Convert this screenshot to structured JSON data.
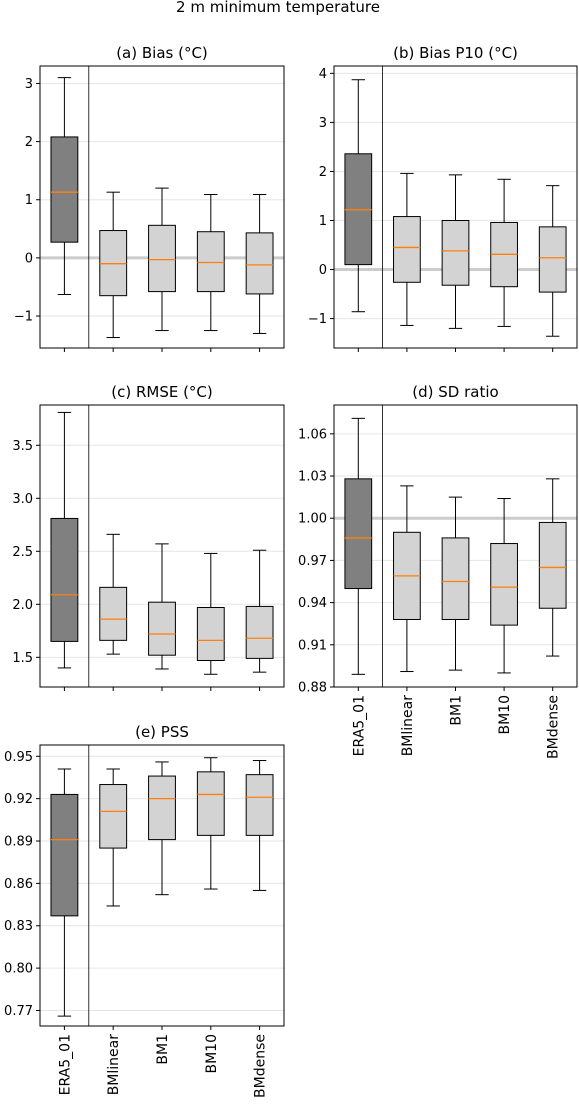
{
  "figure_title": "2 m  minimum temperature",
  "category_labels": [
    "ERA5_01",
    "BMlinear",
    "BM1",
    "BM10",
    "BMdense"
  ],
  "colors": {
    "era5_box": "#808080",
    "bm_box": "#d3d3d3",
    "median": "#ff7f0e",
    "reference_line": "#cccccc",
    "grid": "#e6e6e6"
  },
  "chart_data": [
    {
      "type": "box",
      "title": "(a) Bias (°C)",
      "categories": [
        "ERA5_01",
        "BMlinear",
        "BM1",
        "BM10",
        "BMdense"
      ],
      "ylim": [
        -1.55,
        3.3
      ],
      "yticks": [
        -1,
        0,
        1,
        2,
        3
      ],
      "ytick_labels": [
        "−1",
        "0",
        "1",
        "2",
        "3"
      ],
      "reference_line": 0,
      "show_xtick_labels": false,
      "boxes": [
        {
          "whislo": -0.63,
          "q1": 0.27,
          "med": 1.13,
          "q3": 2.08,
          "whishi": 3.1
        },
        {
          "whislo": -1.37,
          "q1": -0.65,
          "med": -0.1,
          "q3": 0.47,
          "whishi": 1.13
        },
        {
          "whislo": -1.25,
          "q1": -0.58,
          "med": -0.03,
          "q3": 0.56,
          "whishi": 1.2
        },
        {
          "whislo": -1.25,
          "q1": -0.58,
          "med": -0.08,
          "q3": 0.45,
          "whishi": 1.09
        },
        {
          "whislo": -1.3,
          "q1": -0.62,
          "med": -0.12,
          "q3": 0.43,
          "whishi": 1.09
        }
      ]
    },
    {
      "type": "box",
      "title": "(b) Bias P10 (°C)",
      "categories": [
        "ERA5_01",
        "BMlinear",
        "BM1",
        "BM10",
        "BMdense"
      ],
      "ylim": [
        -1.6,
        4.15
      ],
      "yticks": [
        -1,
        0,
        1,
        2,
        3,
        4
      ],
      "ytick_labels": [
        "−1",
        "0",
        "1",
        "2",
        "3",
        "4"
      ],
      "reference_line": 0,
      "show_xtick_labels": false,
      "boxes": [
        {
          "whislo": -0.86,
          "q1": 0.1,
          "med": 1.22,
          "q3": 2.36,
          "whishi": 3.87
        },
        {
          "whislo": -1.14,
          "q1": -0.26,
          "med": 0.45,
          "q3": 1.08,
          "whishi": 1.96
        },
        {
          "whislo": -1.2,
          "q1": -0.32,
          "med": 0.38,
          "q3": 1.0,
          "whishi": 1.93
        },
        {
          "whislo": -1.16,
          "q1": -0.35,
          "med": 0.31,
          "q3": 0.96,
          "whishi": 1.84
        },
        {
          "whislo": -1.36,
          "q1": -0.46,
          "med": 0.24,
          "q3": 0.87,
          "whishi": 1.71
        }
      ]
    },
    {
      "type": "box",
      "title": "(c) RMSE (°C)",
      "categories": [
        "ERA5_01",
        "BMlinear",
        "BM1",
        "BM10",
        "BMdense"
      ],
      "ylim": [
        1.22,
        3.88
      ],
      "yticks": [
        1.5,
        2.0,
        2.5,
        3.0,
        3.5
      ],
      "ytick_labels": [
        "1.5",
        "2.0",
        "2.5",
        "3.0",
        "3.5"
      ],
      "reference_line": null,
      "show_xtick_labels": false,
      "boxes": [
        {
          "whislo": 1.4,
          "q1": 1.65,
          "med": 2.09,
          "q3": 2.81,
          "whishi": 3.81
        },
        {
          "whislo": 1.53,
          "q1": 1.66,
          "med": 1.86,
          "q3": 2.16,
          "whishi": 2.66
        },
        {
          "whislo": 1.39,
          "q1": 1.52,
          "med": 1.72,
          "q3": 2.02,
          "whishi": 2.57
        },
        {
          "whislo": 1.34,
          "q1": 1.47,
          "med": 1.66,
          "q3": 1.97,
          "whishi": 2.48
        },
        {
          "whislo": 1.36,
          "q1": 1.49,
          "med": 1.68,
          "q3": 1.98,
          "whishi": 2.51
        }
      ]
    },
    {
      "type": "box",
      "title": "(d) SD ratio",
      "categories": [
        "ERA5_01",
        "BMlinear",
        "BM1",
        "BM10",
        "BMdense"
      ],
      "ylim": [
        0.88,
        1.0805
      ],
      "yticks": [
        0.88,
        0.91,
        0.94,
        0.97,
        1.0,
        1.03,
        1.06
      ],
      "ytick_labels": [
        "0.88",
        "0.91",
        "0.94",
        "0.97",
        "1.00",
        "1.03",
        "1.06"
      ],
      "reference_line": 1.0,
      "show_xtick_labels": true,
      "boxes": [
        {
          "whislo": 0.889,
          "q1": 0.95,
          "med": 0.986,
          "q3": 1.028,
          "whishi": 1.071
        },
        {
          "whislo": 0.891,
          "q1": 0.928,
          "med": 0.959,
          "q3": 0.99,
          "whishi": 1.023
        },
        {
          "whislo": 0.892,
          "q1": 0.928,
          "med": 0.955,
          "q3": 0.986,
          "whishi": 1.015
        },
        {
          "whislo": 0.89,
          "q1": 0.924,
          "med": 0.951,
          "q3": 0.982,
          "whishi": 1.014
        },
        {
          "whislo": 0.902,
          "q1": 0.936,
          "med": 0.965,
          "q3": 0.997,
          "whishi": 1.028
        }
      ]
    },
    {
      "type": "box",
      "title": "(e) PSS",
      "categories": [
        "ERA5_01",
        "BMlinear",
        "BM1",
        "BM10",
        "BMdense"
      ],
      "ylim": [
        0.759,
        0.958
      ],
      "yticks": [
        0.77,
        0.8,
        0.83,
        0.86,
        0.89,
        0.92,
        0.95
      ],
      "ytick_labels": [
        "0.77",
        "0.80",
        "0.83",
        "0.86",
        "0.89",
        "0.92",
        "0.95"
      ],
      "reference_line": null,
      "show_xtick_labels": true,
      "boxes": [
        {
          "whislo": 0.766,
          "q1": 0.837,
          "med": 0.891,
          "q3": 0.923,
          "whishi": 0.941
        },
        {
          "whislo": 0.844,
          "q1": 0.885,
          "med": 0.911,
          "q3": 0.93,
          "whishi": 0.941
        },
        {
          "whislo": 0.852,
          "q1": 0.891,
          "med": 0.92,
          "q3": 0.936,
          "whishi": 0.946
        },
        {
          "whislo": 0.856,
          "q1": 0.894,
          "med": 0.923,
          "q3": 0.939,
          "whishi": 0.949
        },
        {
          "whislo": 0.855,
          "q1": 0.894,
          "med": 0.921,
          "q3": 0.937,
          "whishi": 0.947
        }
      ]
    }
  ]
}
